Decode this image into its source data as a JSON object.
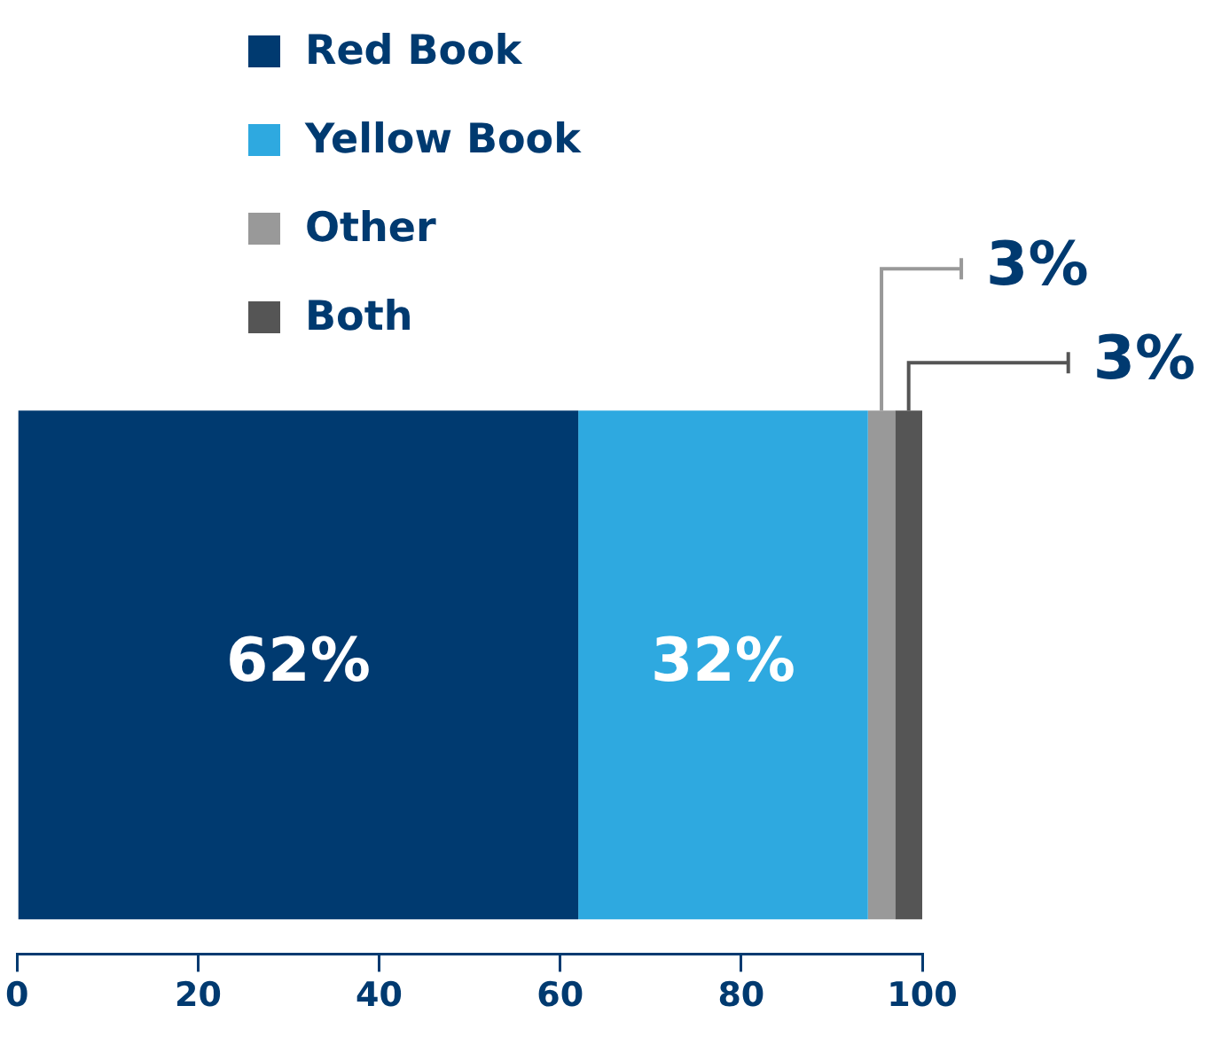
{
  "chart_data": {
    "type": "bar",
    "orientation": "horizontal",
    "stacked": true,
    "categories": [
      null
    ],
    "series": [
      {
        "name": "Red Book",
        "color": "#003a70",
        "values": [
          62
        ],
        "value_labels": [
          "62%"
        ]
      },
      {
        "name": "Yellow Book",
        "color": "#2ea9e0",
        "values": [
          32
        ],
        "value_labels": [
          "32%"
        ]
      },
      {
        "name": "Other",
        "color": "#999999",
        "values": [
          3
        ],
        "value_labels": [
          "3%"
        ]
      },
      {
        "name": "Both",
        "color": "#555555",
        "values": [
          3
        ],
        "value_labels": [
          "3%"
        ]
      }
    ],
    "xlim": [
      0,
      100
    ],
    "xticks": [
      0,
      20,
      40,
      60,
      80,
      100
    ],
    "grid": false,
    "legend": "top"
  }
}
